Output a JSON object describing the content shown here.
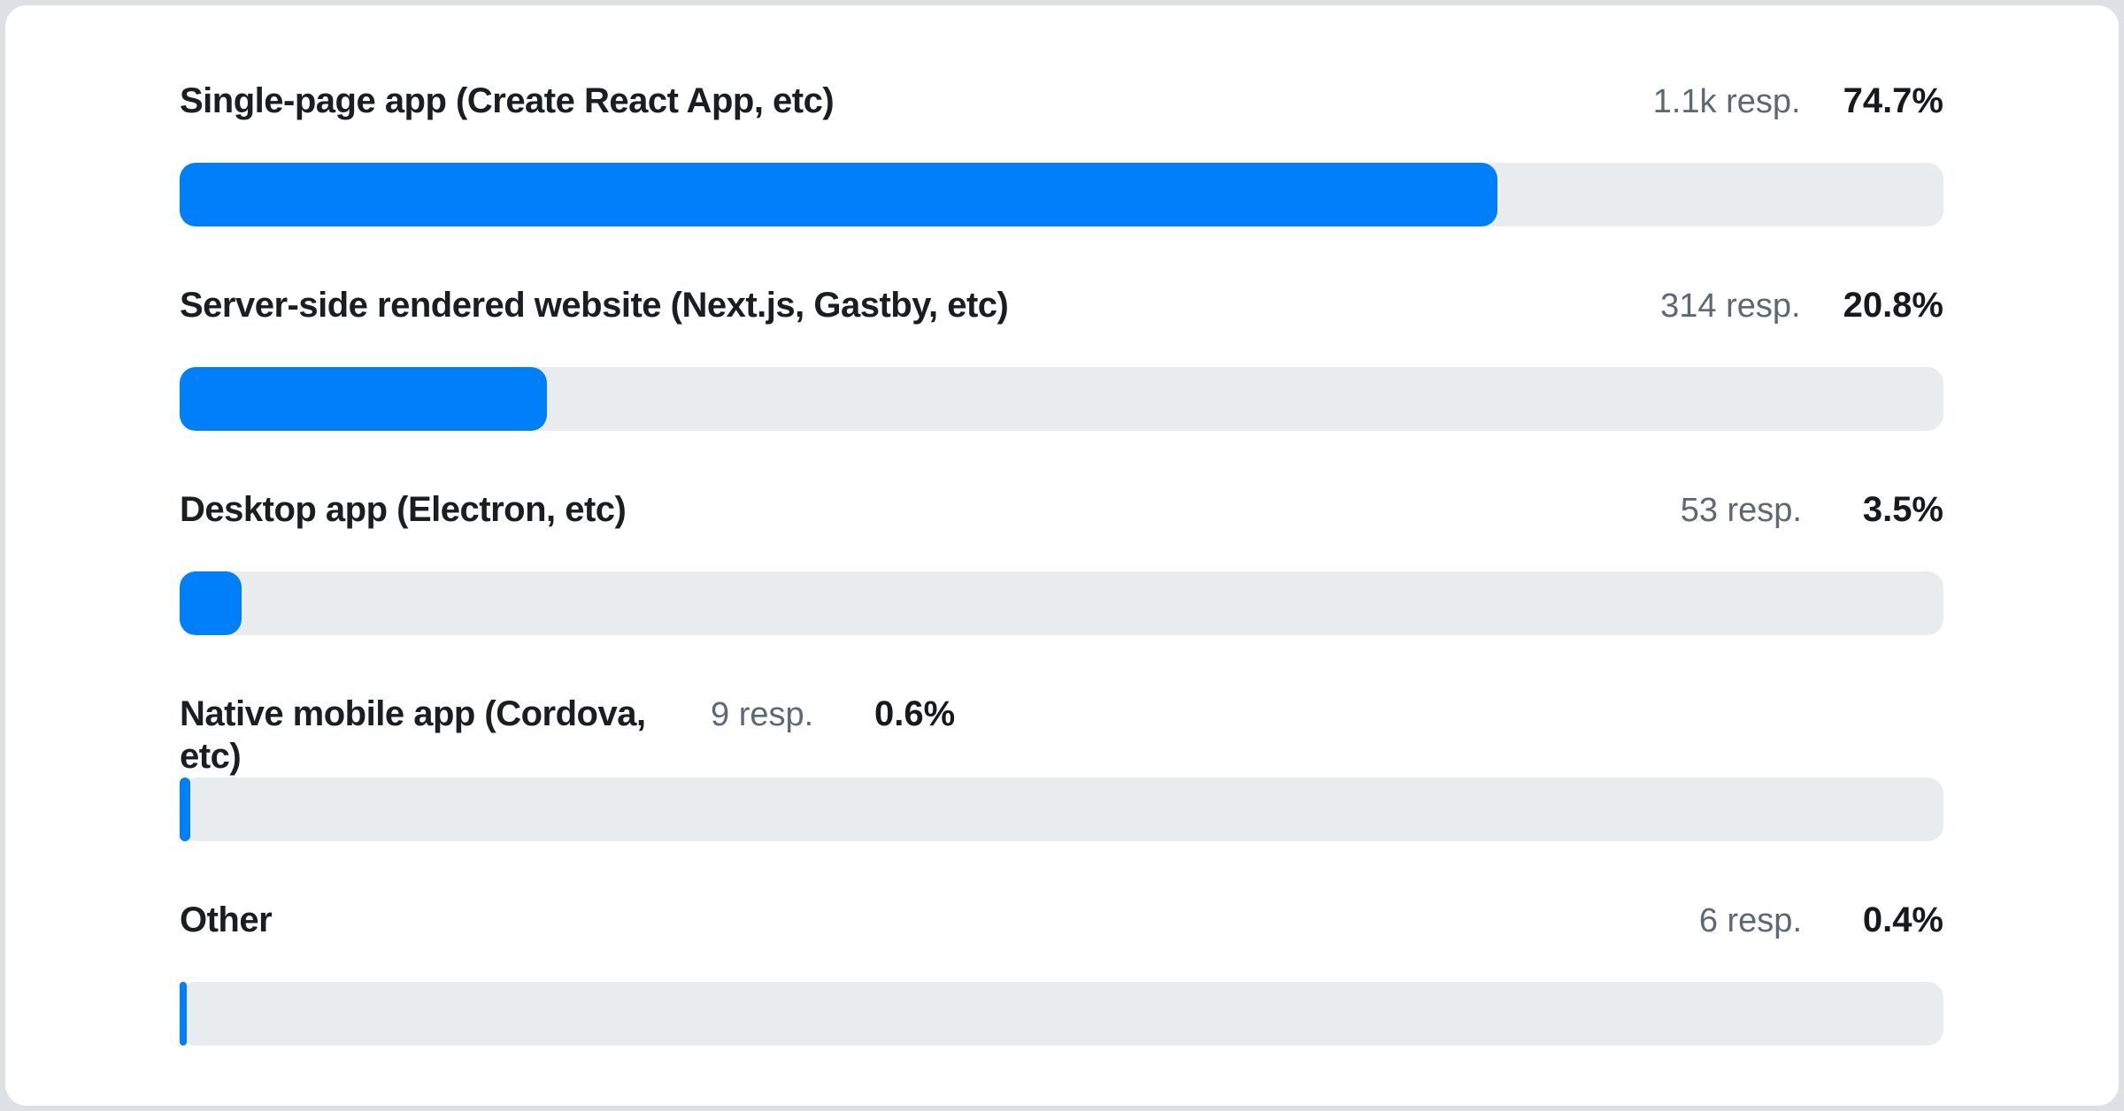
{
  "page": {
    "background_color": "#dde1e5",
    "card_background_color": "#ffffff"
  },
  "colors": {
    "bar_fill": "#007ffa",
    "bar_track": "#e9ecef",
    "label_text": "#1a1d21",
    "responses_text": "#5c6874",
    "percent_text": "#17191c"
  },
  "rows": [
    {
      "label": "Single-page app (Create React App, etc)",
      "responses": "1.1k resp.",
      "percent": "74.7%",
      "bar_width": "74.7%"
    },
    {
      "label": "Server-side rendered website (Next.js, Gastby, etc)",
      "responses": "314 resp.",
      "percent": "20.8%",
      "bar_width": "20.8%"
    },
    {
      "label": "Desktop app (Electron, etc)",
      "responses": "53 resp.",
      "percent": "3.5%",
      "bar_width": "3.5%"
    },
    {
      "label": "Native mobile app (Cordova, etc)",
      "responses": "9 resp.",
      "percent": "0.6%",
      "bar_width": "0.6%"
    },
    {
      "label": "Other",
      "responses": "6 resp.",
      "percent": "0.4%",
      "bar_width": "0.4%"
    }
  ],
  "chart_data": {
    "type": "bar",
    "orientation": "horizontal",
    "title": "",
    "categories": [
      "Single-page app (Create React App, etc)",
      "Server-side rendered website (Next.js, Gastby, etc)",
      "Desktop app (Electron, etc)",
      "Native mobile app (Cordova, etc)",
      "Other"
    ],
    "series": [
      {
        "name": "percent_of_responses",
        "unit": "%",
        "values": [
          74.7,
          20.8,
          3.5,
          0.6,
          0.4
        ]
      },
      {
        "name": "response_count",
        "values": [
          1100,
          314,
          53,
          9,
          6
        ]
      }
    ],
    "value_labels": [
      "74.7%",
      "20.8%",
      "3.5%",
      "0.6%",
      "0.4%"
    ],
    "count_labels": [
      "1.1k resp.",
      "314 resp.",
      "53 resp.",
      "9 resp.",
      "6 resp."
    ],
    "xlabel": "",
    "ylabel": "",
    "xlim": [
      0,
      100
    ],
    "grid": false,
    "legend": false,
    "bar_color": "#007ffa",
    "track_color": "#e9ecef"
  }
}
